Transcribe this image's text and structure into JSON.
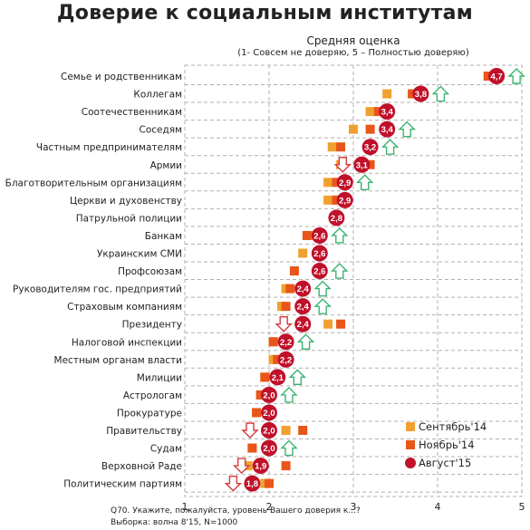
{
  "title": "Доверие к социальным институтам",
  "subtitle": "Средняя оценка",
  "subtitle_note": "(1- Совсем не доверяю, 5 – Полностью доверяю)",
  "footnote_question": "Q70. Укажите, пожалуйста, уровень Вашего доверия к...?",
  "footnote_sample": "Выборка: волна 8'15, N=1000",
  "colors": {
    "sep14": "#f0a030",
    "nov14": "#e8561a",
    "aug15": "#c0102a",
    "arrow_up": "#3cb371",
    "arrow_down": "#d63a3a",
    "grid": "#b0b0b0"
  },
  "chart_data": {
    "type": "scatter",
    "xlim": [
      1,
      5
    ],
    "xticks": [
      "1",
      "2",
      "3",
      "4",
      "5"
    ],
    "legend_position": "bottom-right",
    "series_names": [
      "Сентябрь'14",
      "Ноябрь'14",
      "Август'15"
    ],
    "rows": [
      {
        "label": "Семье и родственникам",
        "sep14": 4.6,
        "nov14": 4.6,
        "aug15": 4.7,
        "aug15_label": "4,7",
        "trend": "up"
      },
      {
        "label": "Коллегам",
        "sep14": 3.4,
        "nov14": 3.7,
        "aug15": 3.8,
        "aug15_label": "3,8",
        "trend": "up"
      },
      {
        "label": "Соотечественникам",
        "sep14": 3.2,
        "nov14": 3.3,
        "aug15": 3.4,
        "aug15_label": "3,4",
        "trend": null
      },
      {
        "label": "Соседям",
        "sep14": 3.0,
        "nov14": 3.2,
        "aug15": 3.4,
        "aug15_label": "3,4",
        "trend": "up"
      },
      {
        "label": "Частным предпринимателям",
        "sep14": 2.75,
        "nov14": 2.85,
        "aug15": 3.2,
        "aug15_label": "3,2",
        "trend": "up"
      },
      {
        "label": "Армии",
        "sep14": 2.85,
        "nov14": 3.2,
        "aug15": 3.1,
        "aug15_label": "3,1",
        "trend": "down"
      },
      {
        "label": "Благотворительным организациям",
        "sep14": 2.7,
        "nov14": 2.8,
        "aug15": 2.9,
        "aug15_label": "2,9",
        "trend": "up"
      },
      {
        "label": "Церкви и духовенству",
        "sep14": 2.7,
        "nov14": 2.8,
        "aug15": 2.9,
        "aug15_label": "2,9",
        "trend": null
      },
      {
        "label": "Патрульной полиции",
        "sep14": null,
        "nov14": null,
        "aug15": 2.8,
        "aug15_label": "2,8",
        "trend": null
      },
      {
        "label": "Банкам",
        "sep14": 2.5,
        "nov14": 2.45,
        "aug15": 2.6,
        "aug15_label": "2,6",
        "trend": "up"
      },
      {
        "label": "Украинским СМИ",
        "sep14": 2.4,
        "nov14": null,
        "aug15": 2.6,
        "aug15_label": "2,6",
        "trend": null
      },
      {
        "label": "Профсоюзам",
        "sep14": null,
        "nov14": 2.3,
        "aug15": 2.6,
        "aug15_label": "2,6",
        "trend": "up"
      },
      {
        "label": "Руководителям гос. предприятий",
        "sep14": 2.2,
        "nov14": 2.25,
        "aug15": 2.4,
        "aug15_label": "2,4",
        "trend": "up"
      },
      {
        "label": "Страховым компаниям",
        "sep14": 2.15,
        "nov14": 2.2,
        "aug15": 2.4,
        "aug15_label": "2,4",
        "trend": "up"
      },
      {
        "label": "Президенту",
        "sep14": 2.7,
        "nov14": 2.85,
        "aug15": 2.4,
        "aug15_label": "2,4",
        "trend": "down"
      },
      {
        "label": "Налоговой инспекции",
        "sep14": 2.05,
        "nov14": 2.05,
        "aug15": 2.2,
        "aug15_label": "2,2",
        "trend": "up"
      },
      {
        "label": "Местным органам власти",
        "sep14": 2.05,
        "nov14": 2.1,
        "aug15": 2.2,
        "aug15_label": "2,2",
        "trend": null
      },
      {
        "label": "Милиции",
        "sep14": 1.95,
        "nov14": 1.95,
        "aug15": 2.1,
        "aug15_label": "2,1",
        "trend": "up"
      },
      {
        "label": "Астрологам",
        "sep14": 1.9,
        "nov14": 1.9,
        "aug15": 2.0,
        "aug15_label": "2,0",
        "trend": "up"
      },
      {
        "label": "Прокуратуре",
        "sep14": 1.85,
        "nov14": 1.85,
        "aug15": 2.0,
        "aug15_label": "2,0",
        "trend": null
      },
      {
        "label": "Правительству",
        "sep14": 2.2,
        "nov14": 2.4,
        "aug15": 2.0,
        "aug15_label": "2,0",
        "trend": "down"
      },
      {
        "label": "Судам",
        "sep14": 1.8,
        "nov14": 1.8,
        "aug15": 2.0,
        "aug15_label": "2,0",
        "trend": "up"
      },
      {
        "label": "Верховной Раде",
        "sep14": 1.75,
        "nov14": 2.2,
        "aug15": 1.9,
        "aug15_label": "1,9",
        "trend": "down"
      },
      {
        "label": "Политическим партиям",
        "sep14": 1.95,
        "nov14": 2.0,
        "aug15": 1.8,
        "aug15_label": "1,8",
        "trend": "down"
      }
    ]
  }
}
